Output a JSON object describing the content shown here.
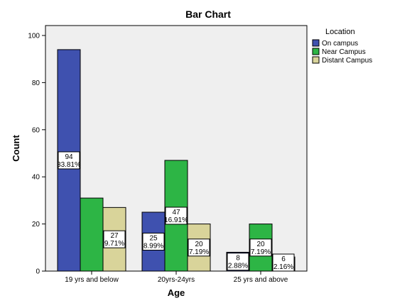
{
  "chart_data": {
    "type": "bar",
    "title": "Bar Chart",
    "xlabel": "Age",
    "ylabel": "Count",
    "ylim": [
      0,
      100
    ],
    "yticks": [
      0,
      20,
      40,
      60,
      80,
      100
    ],
    "yticks_text": [
      "0",
      "20",
      "40",
      "60",
      "80",
      "100"
    ],
    "grid": false,
    "legend_placement": "right",
    "legend_title": "Location",
    "categories": [
      "19 yrs and below",
      "20yrs-24yrs",
      "25 yrs and above"
    ],
    "series": [
      {
        "name": "On campus",
        "color": "#3F51AF",
        "values": [
          94,
          25,
          8
        ],
        "labels": [
          [
            "94",
            "33.81%"
          ],
          [
            "25",
            "8.99%"
          ],
          [
            "8",
            "2.88%"
          ]
        ]
      },
      {
        "name": "Near Campus",
        "color": "#2DB545",
        "values": [
          31,
          47,
          20
        ],
        "labels": [
          null,
          [
            "47",
            "16.91%"
          ],
          [
            "20",
            "7.19%"
          ]
        ]
      },
      {
        "name": "Distant Campus",
        "color": "#D9D49A",
        "values": [
          27,
          20,
          6
        ],
        "labels": [
          [
            "27",
            "9.71%"
          ],
          [
            "20",
            "7.19%"
          ],
          [
            "6",
            "2.16%"
          ]
        ]
      }
    ]
  }
}
